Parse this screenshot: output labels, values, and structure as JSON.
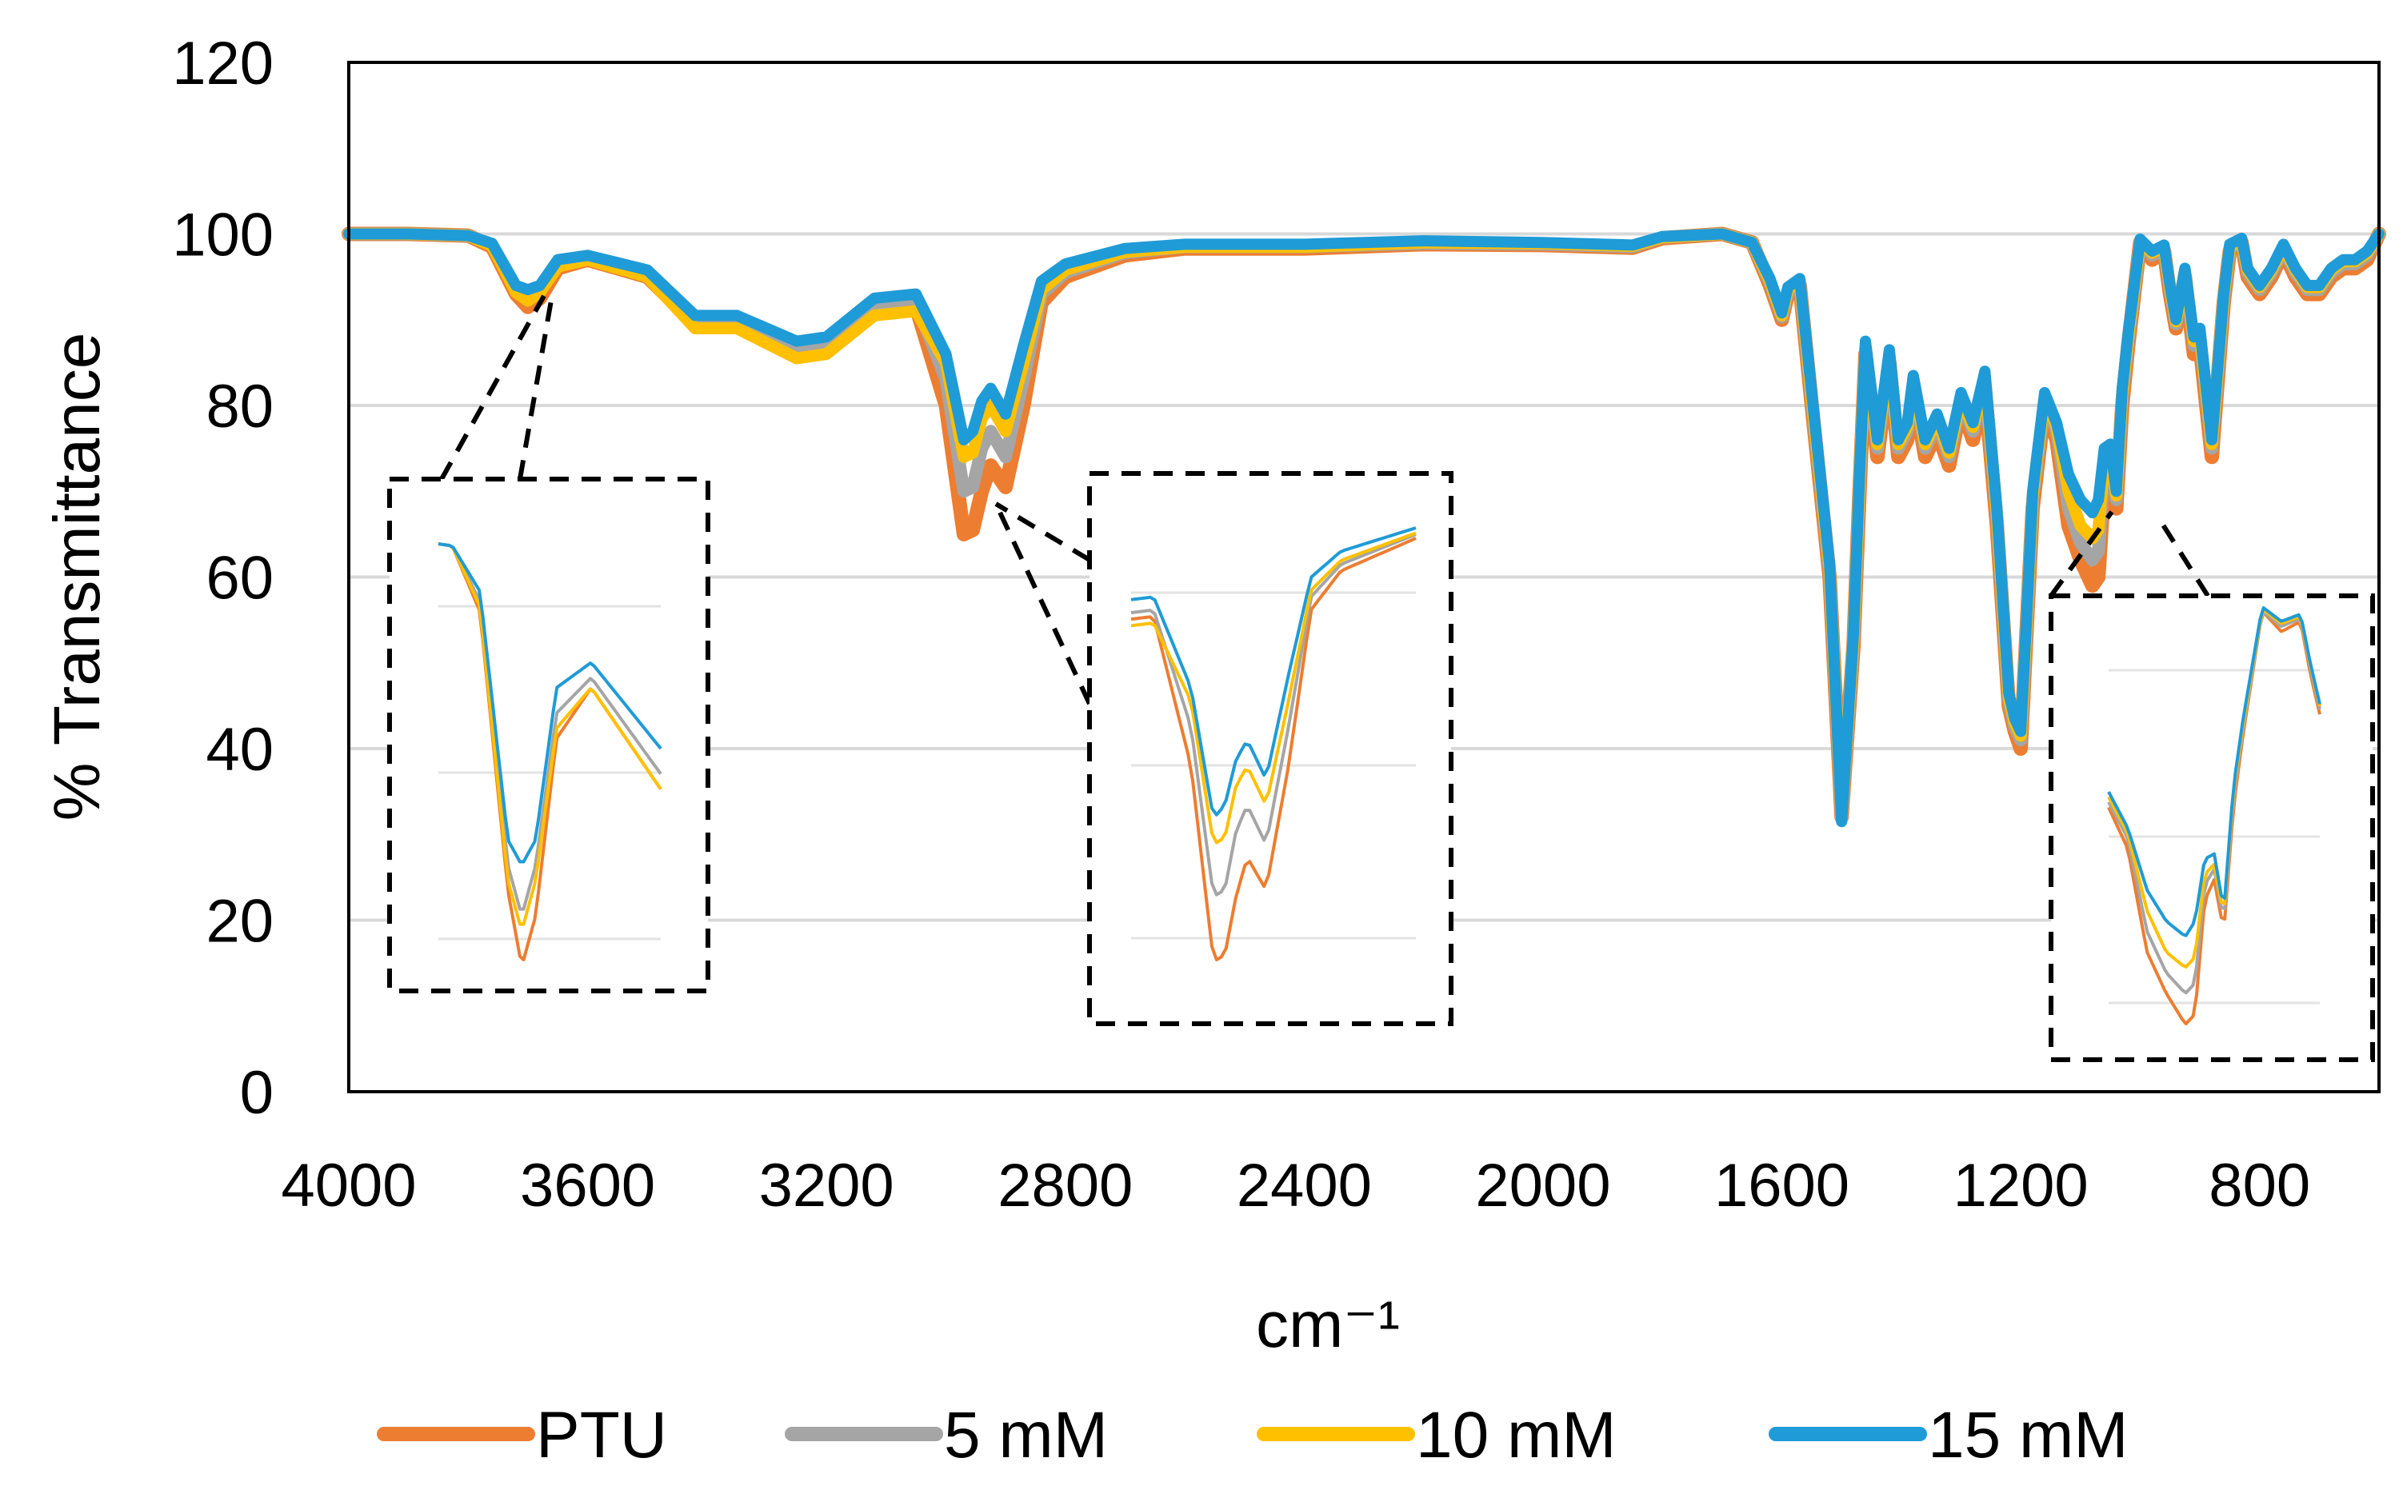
{
  "chart_data": {
    "type": "line",
    "title": "",
    "xlabel": "cm⁻¹",
    "ylabel": "% Transmittance",
    "xlim": [
      4000,
      600
    ],
    "ylim": [
      0,
      120
    ],
    "xticks": [
      "4000",
      "3600",
      "3200",
      "2800",
      "2400",
      "2000",
      "1600",
      "1200",
      "800"
    ],
    "yticks": [
      "0",
      "20",
      "40",
      "60",
      "80",
      "100",
      "120"
    ],
    "grid": true,
    "legend_position": "bottom",
    "series": [
      {
        "name": "PTU",
        "color": "#ED7D31",
        "x": [
          4000,
          3900,
          3800,
          3760,
          3720,
          3700,
          3680,
          3650,
          3600,
          3500,
          3420,
          3350,
          3250,
          3200,
          3120,
          3050,
          3000,
          2970,
          2955,
          2940,
          2925,
          2900,
          2870,
          2840,
          2800,
          2700,
          2600,
          2400,
          2200,
          2000,
          1850,
          1800,
          1700,
          1650,
          1620,
          1600,
          1590,
          1570,
          1550,
          1520,
          1500,
          1480,
          1470,
          1460,
          1440,
          1420,
          1405,
          1390,
          1380,
          1360,
          1340,
          1320,
          1300,
          1280,
          1260,
          1240,
          1220,
          1210,
          1200,
          1190,
          1180,
          1160,
          1140,
          1120,
          1100,
          1080,
          1070,
          1060,
          1050,
          1040,
          1030,
          1020,
          1000,
          980,
          960,
          950,
          940,
          925,
          910,
          900,
          880,
          860,
          850,
          830,
          820,
          810,
          800,
          780,
          760,
          740,
          720,
          700,
          680,
          660,
          640,
          620,
          600
        ],
        "y": [
          100,
          100,
          99.8,
          98.5,
          93,
          91.5,
          92.5,
          96,
          97,
          95,
          89.5,
          89.5,
          86,
          86.5,
          91,
          91.5,
          80,
          65,
          65.5,
          70,
          73,
          70.5,
          80,
          92,
          95,
          97.5,
          98.3,
          98.3,
          98.8,
          98.7,
          98.4,
          99.5,
          100,
          99,
          94,
          90,
          93,
          94,
          80,
          60,
          32,
          52,
          70,
          86,
          74,
          85,
          74,
          76,
          82,
          74,
          77,
          73,
          80,
          76,
          82,
          66,
          45,
          42,
          40,
          54,
          68,
          80,
          76,
          66,
          62,
          59,
          60,
          71,
          73,
          68,
          80,
          87,
          99,
          97,
          98,
          93,
          89,
          95,
          86,
          87,
          74,
          92,
          98,
          99,
          95,
          94,
          93,
          95,
          98,
          95,
          93,
          93,
          95,
          96,
          96,
          97,
          100
        ]
      },
      {
        "name": "5 mM",
        "color": "#A5A5A5",
        "x": [
          4000,
          3900,
          3800,
          3760,
          3720,
          3700,
          3680,
          3650,
          3600,
          3500,
          3420,
          3350,
          3250,
          3200,
          3120,
          3050,
          3000,
          2970,
          2955,
          2940,
          2925,
          2900,
          2870,
          2840,
          2800,
          2700,
          2600,
          2400,
          2200,
          2000,
          1850,
          1800,
          1700,
          1650,
          1620,
          1600,
          1590,
          1570,
          1550,
          1520,
          1500,
          1480,
          1470,
          1460,
          1440,
          1420,
          1405,
          1390,
          1380,
          1360,
          1340,
          1320,
          1300,
          1280,
          1260,
          1240,
          1220,
          1210,
          1200,
          1190,
          1180,
          1160,
          1140,
          1120,
          1100,
          1080,
          1070,
          1060,
          1050,
          1040,
          1030,
          1020,
          1000,
          980,
          960,
          950,
          940,
          925,
          910,
          900,
          880,
          860,
          850,
          830,
          820,
          810,
          800,
          780,
          760,
          740,
          720,
          700,
          680,
          660,
          640,
          620,
          600
        ],
        "y": [
          100,
          100,
          99.8,
          98.7,
          93.5,
          92.5,
          93.5,
          96.5,
          97.2,
          95.3,
          90,
          90,
          86.5,
          87,
          91.5,
          92,
          83,
          70,
          70.5,
          75,
          77,
          74,
          83,
          93,
          95.5,
          97.8,
          98.5,
          98.5,
          98.9,
          98.8,
          98.5,
          99.6,
          100,
          99,
          94.3,
          90.3,
          93.3,
          94.3,
          80.5,
          60.5,
          32,
          52.5,
          71,
          86.5,
          75,
          85.5,
          75,
          77,
          82.5,
          75,
          78,
          74,
          80.5,
          77,
          83,
          67,
          45.5,
          42.5,
          41,
          54.5,
          69,
          80.5,
          77,
          68,
          64,
          62,
          63,
          72.5,
          74,
          69,
          81,
          87.5,
          99,
          97.5,
          98.3,
          93.5,
          89.5,
          95.5,
          87,
          88,
          75,
          92.5,
          98.3,
          99.2,
          95.5,
          94.5,
          93.5,
          95.5,
          98.3,
          95.5,
          93.5,
          93.5,
          95.5,
          96.5,
          96.5,
          97.5,
          100
        ]
      },
      {
        "name": "10 mM",
        "color": "#FFC000",
        "x": [
          4000,
          3900,
          3800,
          3760,
          3720,
          3700,
          3680,
          3650,
          3600,
          3500,
          3420,
          3350,
          3250,
          3200,
          3120,
          3050,
          3000,
          2970,
          2955,
          2940,
          2925,
          2900,
          2870,
          2840,
          2800,
          2700,
          2600,
          2400,
          2200,
          2000,
          1850,
          1800,
          1700,
          1650,
          1620,
          1600,
          1590,
          1570,
          1550,
          1520,
          1500,
          1480,
          1470,
          1460,
          1440,
          1420,
          1405,
          1390,
          1380,
          1360,
          1340,
          1320,
          1300,
          1280,
          1260,
          1240,
          1220,
          1210,
          1200,
          1190,
          1180,
          1160,
          1140,
          1120,
          1100,
          1080,
          1070,
          1060,
          1050,
          1040,
          1030,
          1020,
          1000,
          980,
          960,
          950,
          940,
          925,
          910,
          900,
          880,
          860,
          850,
          830,
          820,
          810,
          800,
          780,
          760,
          740,
          720,
          700,
          680,
          660,
          640,
          620,
          600
        ],
        "y": [
          100,
          100,
          99.8,
          98.6,
          93.2,
          92.2,
          93.2,
          96.2,
          97,
          95,
          89,
          89,
          85.5,
          86,
          90.5,
          91,
          85,
          74,
          74.5,
          78.5,
          80,
          77,
          85,
          93.5,
          95.8,
          97.9,
          98.5,
          98.5,
          99,
          98.9,
          98.6,
          99.6,
          100,
          99,
          94.5,
          90.5,
          93.5,
          94.5,
          81,
          61,
          32,
          53,
          71.5,
          87,
          75.5,
          86,
          75.5,
          77.5,
          83,
          75.5,
          78.5,
          74.5,
          81,
          77.5,
          83.5,
          67.5,
          46,
          43,
          41.5,
          55,
          69.5,
          81,
          77.5,
          70,
          66,
          64.5,
          65.5,
          73.5,
          74.5,
          69.5,
          81.5,
          88,
          99.2,
          97.8,
          98.5,
          93.8,
          89.8,
          95.8,
          87.5,
          88.5,
          75.5,
          92.8,
          98.5,
          99.3,
          95.8,
          94.8,
          93.8,
          95.8,
          98.5,
          95.8,
          93.8,
          93.8,
          95.8,
          96.8,
          96.8,
          97.8,
          100
        ]
      },
      {
        "name": "15 mM",
        "color": "#1F9BD7",
        "x": [
          4000,
          3900,
          3800,
          3760,
          3720,
          3700,
          3680,
          3650,
          3600,
          3500,
          3420,
          3350,
          3250,
          3200,
          3120,
          3050,
          3000,
          2970,
          2955,
          2940,
          2925,
          2900,
          2870,
          2840,
          2800,
          2700,
          2600,
          2400,
          2200,
          2000,
          1850,
          1800,
          1700,
          1650,
          1620,
          1600,
          1590,
          1570,
          1550,
          1520,
          1500,
          1480,
          1470,
          1460,
          1440,
          1420,
          1405,
          1390,
          1380,
          1360,
          1340,
          1320,
          1300,
          1280,
          1260,
          1240,
          1220,
          1210,
          1200,
          1190,
          1180,
          1160,
          1140,
          1120,
          1100,
          1080,
          1070,
          1060,
          1050,
          1040,
          1030,
          1020,
          1000,
          980,
          960,
          950,
          940,
          925,
          910,
          900,
          880,
          860,
          850,
          830,
          820,
          810,
          800,
          780,
          760,
          740,
          720,
          700,
          680,
          660,
          640,
          620,
          600
        ],
        "y": [
          100,
          100,
          99.8,
          98.9,
          94,
          93.5,
          94,
          97,
          97.5,
          95.8,
          90.5,
          90.5,
          87.5,
          88,
          92.5,
          93,
          86,
          76,
          77,
          80.5,
          82,
          79,
          87,
          94.5,
          96.5,
          98.3,
          98.8,
          98.8,
          99.2,
          99,
          98.7,
          99.7,
          100,
          99,
          94.8,
          90.8,
          93.8,
          94.8,
          81.5,
          61.5,
          31.5,
          53.5,
          72,
          87.5,
          76,
          86.5,
          76,
          78,
          83.5,
          76,
          79,
          75,
          81.5,
          78,
          84,
          68,
          46.5,
          43.5,
          42,
          55.5,
          70,
          81.5,
          78,
          72,
          69,
          67.5,
          69,
          75,
          75.5,
          70,
          82,
          88.5,
          99.4,
          98,
          98.7,
          94,
          90,
          96,
          88,
          89,
          76,
          93,
          98.8,
          99.5,
          96,
          95,
          94,
          96,
          98.8,
          96,
          94,
          94,
          96,
          97,
          97,
          98,
          100
        ]
      }
    ]
  }
}
